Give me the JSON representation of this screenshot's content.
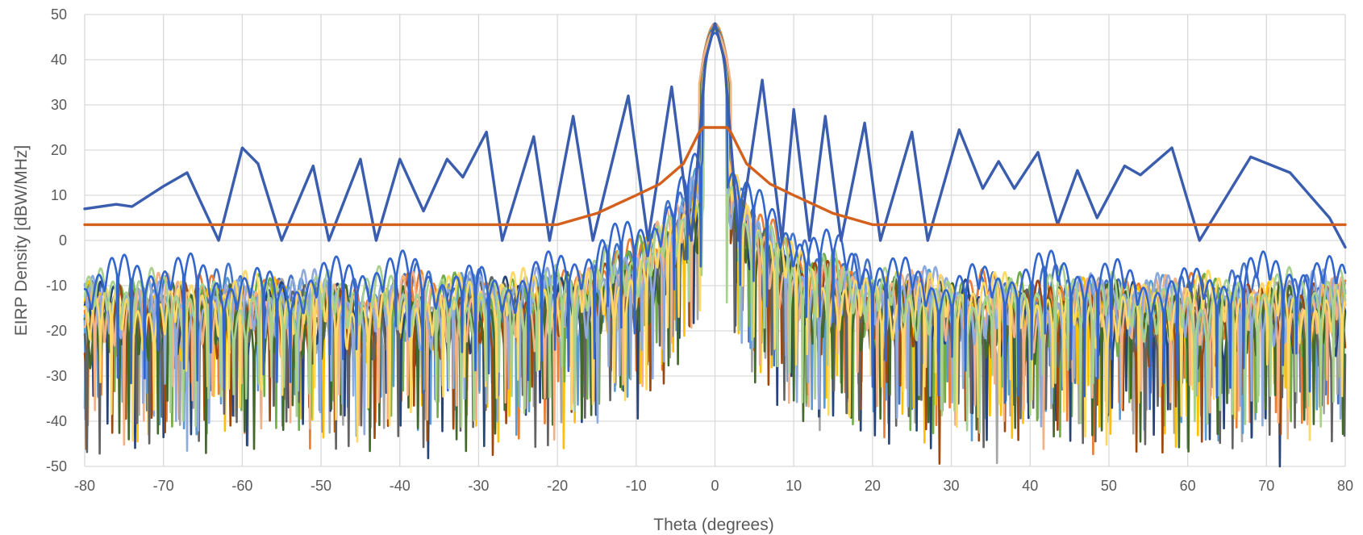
{
  "chart_data": {
    "type": "line",
    "title": "",
    "xlabel": "Theta (degrees)",
    "ylabel": "EIRP Density [dBW/MHz]",
    "xlim": [
      -80,
      80
    ],
    "ylim": [
      -50,
      50
    ],
    "xticks": [
      -80,
      -70,
      -60,
      -50,
      -40,
      -30,
      -20,
      -10,
      0,
      10,
      20,
      30,
      40,
      50,
      60,
      70,
      80
    ],
    "yticks": [
      -50,
      -40,
      -30,
      -20,
      -10,
      0,
      10,
      20,
      30,
      40,
      50
    ],
    "grid": true,
    "legend": "none",
    "peak": {
      "x": 0,
      "y": 48
    },
    "mask_series": {
      "color": "#D4601E",
      "points": [
        [
          -80,
          3.5
        ],
        [
          -20,
          3.5
        ],
        [
          -15,
          6
        ],
        [
          -10,
          10
        ],
        [
          -7,
          12.5
        ],
        [
          -4,
          17
        ],
        [
          -2,
          24
        ],
        [
          -1.5,
          25
        ],
        [
          1.5,
          25
        ],
        [
          2,
          24
        ],
        [
          4,
          17
        ],
        [
          7,
          12.5
        ],
        [
          10,
          10
        ],
        [
          15,
          6
        ],
        [
          20,
          3.5
        ],
        [
          80,
          3.5
        ]
      ]
    },
    "envelope_series": {
      "color": "#3A5DAE",
      "points": [
        [
          -80,
          7
        ],
        [
          -76,
          8
        ],
        [
          -74,
          7.5
        ],
        [
          -70,
          12
        ],
        [
          -67,
          15
        ],
        [
          -63,
          0
        ],
        [
          -60,
          20.5
        ],
        [
          -58,
          17
        ],
        [
          -55,
          0
        ],
        [
          -51,
          16.5
        ],
        [
          -49,
          0
        ],
        [
          -45,
          18
        ],
        [
          -43,
          0
        ],
        [
          -40,
          18
        ],
        [
          -37,
          6.5
        ],
        [
          -34,
          18
        ],
        [
          -32,
          14
        ],
        [
          -29,
          24
        ],
        [
          -27,
          0
        ],
        [
          -23,
          23
        ],
        [
          -21,
          0
        ],
        [
          -18,
          27.5
        ],
        [
          -15.5,
          0
        ],
        [
          -11,
          32
        ],
        [
          -8.5,
          0
        ],
        [
          -5.5,
          34
        ],
        [
          -3,
          0
        ],
        [
          -1.2,
          40
        ],
        [
          0,
          48
        ],
        [
          1.2,
          40
        ],
        [
          3,
          0
        ],
        [
          6,
          35.5
        ],
        [
          8.5,
          0
        ],
        [
          10,
          29
        ],
        [
          12,
          0
        ],
        [
          14,
          27.5
        ],
        [
          16,
          0
        ],
        [
          19,
          26
        ],
        [
          21,
          0
        ],
        [
          25,
          24
        ],
        [
          27,
          0
        ],
        [
          31,
          24.5
        ],
        [
          34,
          11.5
        ],
        [
          36,
          17.5
        ],
        [
          38,
          11.5
        ],
        [
          41,
          19.5
        ],
        [
          43.5,
          3.5
        ],
        [
          46,
          15.5
        ],
        [
          48.5,
          5
        ],
        [
          52,
          16.5
        ],
        [
          54,
          14.5
        ],
        [
          58,
          20.5
        ],
        [
          61.5,
          0
        ],
        [
          68,
          18.5
        ],
        [
          73,
          15
        ],
        [
          78,
          5
        ],
        [
          80,
          -1.5
        ]
      ]
    },
    "sidelobe_series": [
      {
        "color": "#4472C4",
        "floor": -14,
        "spread": 8,
        "decay": 14
      },
      {
        "color": "#ED7D31",
        "floor": -16,
        "spread": 9,
        "decay": 12
      },
      {
        "color": "#A5A5A5",
        "floor": -18,
        "spread": 10,
        "decay": 11
      },
      {
        "color": "#FFC000",
        "floor": -18,
        "spread": 10,
        "decay": 12
      },
      {
        "color": "#5B9BD5",
        "floor": -17,
        "spread": 10,
        "decay": 11
      },
      {
        "color": "#70AD47",
        "floor": -17,
        "spread": 10,
        "decay": 12
      },
      {
        "color": "#264478",
        "floor": -19,
        "spread": 11,
        "decay": 10
      },
      {
        "color": "#9E480E",
        "floor": -19,
        "spread": 11,
        "decay": 10
      },
      {
        "color": "#636363",
        "floor": -19,
        "spread": 11,
        "decay": 10
      },
      {
        "color": "#43682B",
        "floor": -19,
        "spread": 11,
        "decay": 10
      },
      {
        "color": "#F4B183",
        "floor": -17,
        "spread": 10,
        "decay": 11
      },
      {
        "color": "#8FAADC",
        "floor": -16,
        "spread": 10,
        "decay": 11
      },
      {
        "color": "#FFD966",
        "floor": -16,
        "spread": 9,
        "decay": 12
      },
      {
        "color": "#A9D18E",
        "floor": -15,
        "spread": 9,
        "decay": 12
      },
      {
        "color": "#3366CC",
        "floor": -10,
        "spread": 6,
        "decay": 15
      }
    ]
  }
}
